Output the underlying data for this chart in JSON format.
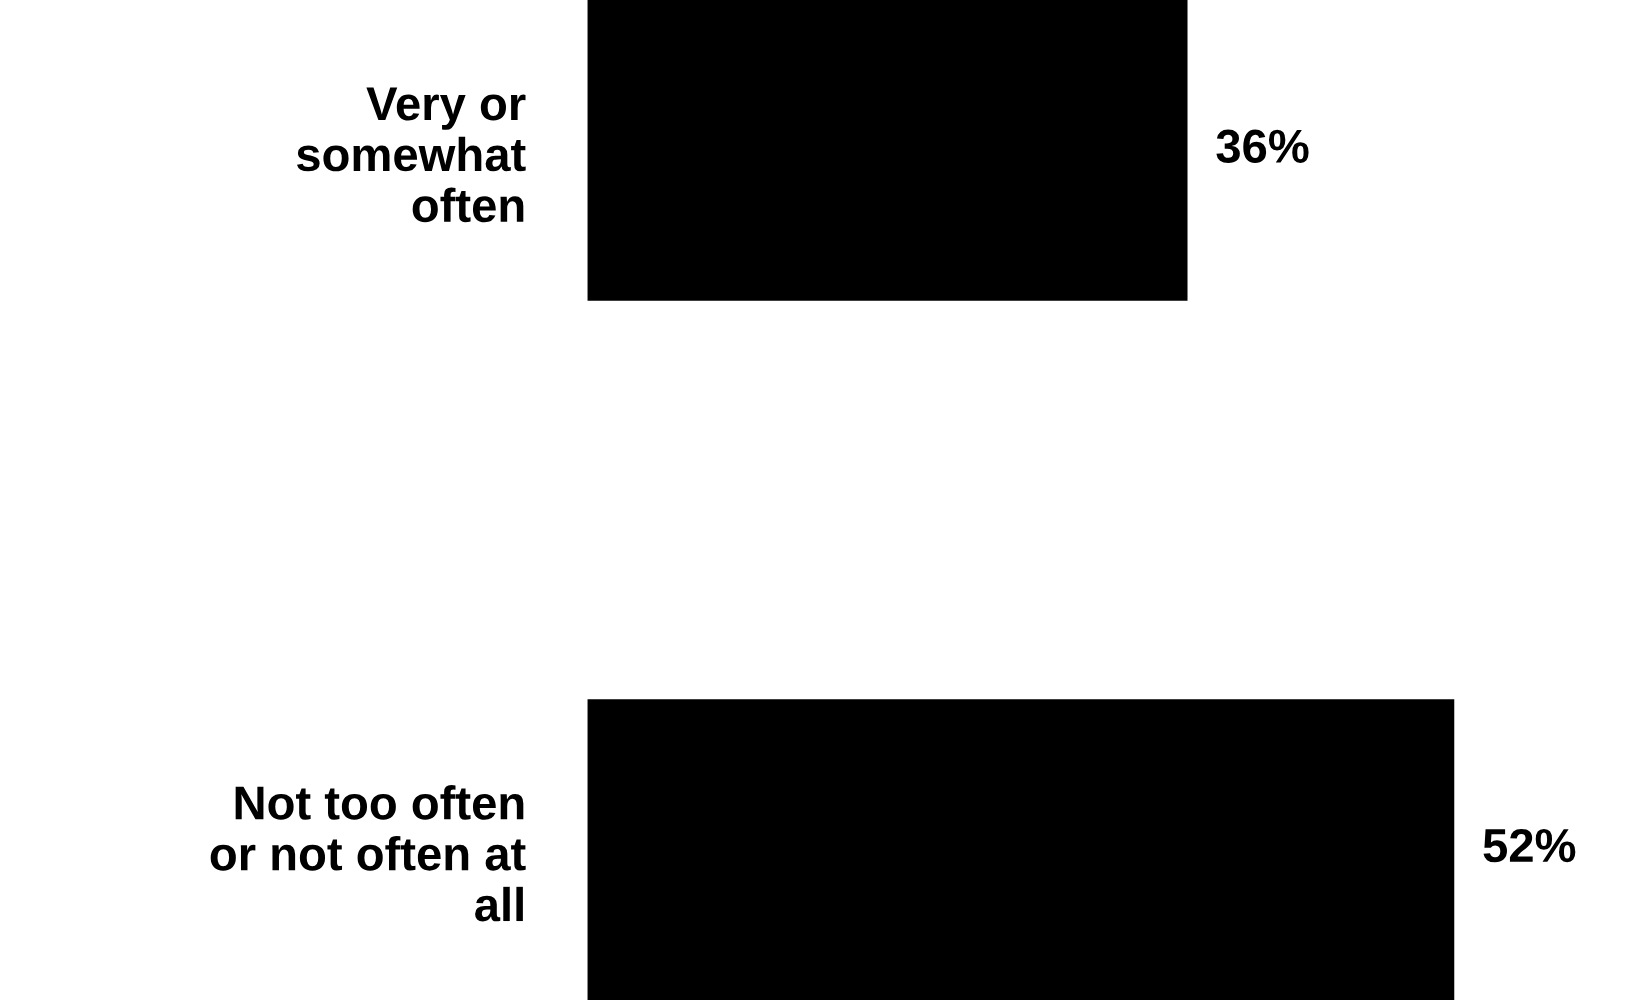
{
  "chart_data": {
    "type": "bar",
    "orientation": "horizontal",
    "categories": [
      "Very or\nsomewhat\noften",
      "Not too often\nor not often at\nall"
    ],
    "values": [
      36,
      52
    ],
    "color": "#000000",
    "data_labels": true,
    "value_labels": [
      "36%",
      "52%"
    ],
    "grid": false,
    "legend": false
  }
}
